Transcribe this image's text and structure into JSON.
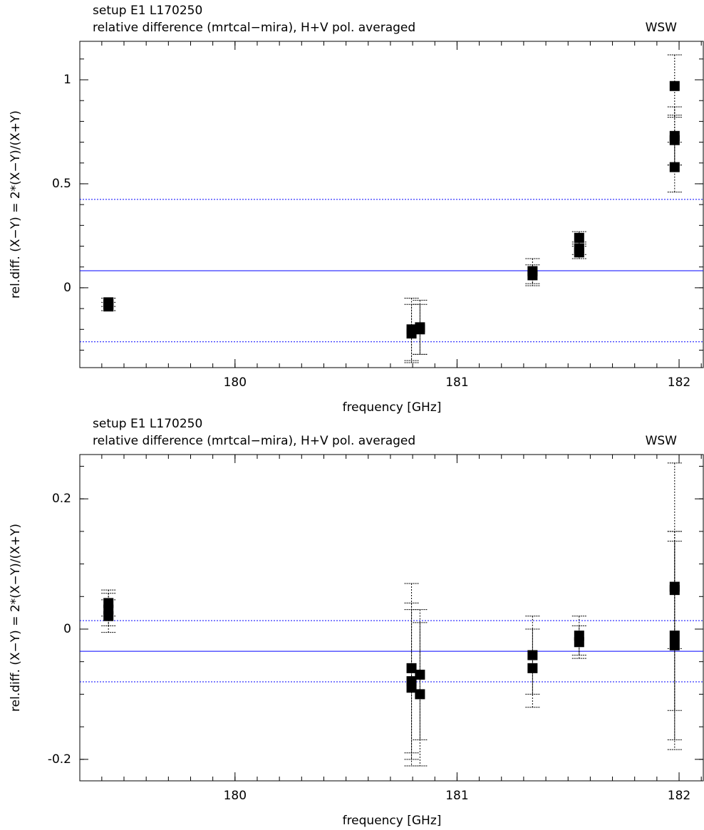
{
  "chart_data": [
    {
      "type": "scatter",
      "title": "setup E1 L170250",
      "subtitle": "relative difference (mrtcal−mira), H+V pol. averaged",
      "annotation": "WSW",
      "xlabel": "frequency [GHz]",
      "ylabel": "rel.diff. (X−Y) = 2*(X−Y)/(X+Y)",
      "xlim": [
        179.301,
        182.109
      ],
      "xticks": [
        180,
        181,
        182
      ],
      "xminor": 0.1,
      "ylim": [
        -0.384,
        1.185
      ],
      "yticks": [
        0,
        0.5,
        1
      ],
      "yminor": 0.1,
      "series": [
        {
          "color": "#000000",
          "x": [
            179.43,
            179.43,
            179.43,
            180.795,
            180.795,
            180.833,
            180.833,
            181.34,
            181.34,
            181.55,
            181.55,
            181.55,
            181.98,
            181.98,
            181.98,
            181.98
          ],
          "values": [
            -0.07,
            -0.09,
            -0.08,
            -0.2,
            -0.22,
            -0.19,
            -0.2,
            0.06,
            0.08,
            0.24,
            0.17,
            0.19,
            0.97,
            0.73,
            0.71,
            0.58
          ],
          "errors": [
            0.02,
            0.02,
            0.03,
            0.15,
            0.14,
            0.13,
            0.12,
            0.05,
            0.06,
            0.03,
            0.03,
            0.03,
            0.15,
            0.14,
            0.12,
            0.12
          ]
        }
      ],
      "hlines": [
        {
          "value": 0.082,
          "color": "#0000ff",
          "dashed": false
        },
        {
          "value": 0.425,
          "color": "#0000ff",
          "dashed": true
        },
        {
          "value": -0.26,
          "color": "#0000ff",
          "dashed": true
        }
      ]
    },
    {
      "type": "scatter",
      "title": "setup E1 L170250",
      "subtitle": "relative difference (mrtcal−mira), H+V pol. averaged",
      "annotation": "WSW",
      "xlabel": "frequency [GHz]",
      "ylabel": "rel.diff. (X−Y) = 2*(X−Y)/(X+Y)",
      "xlim": [
        179.301,
        182.109
      ],
      "xticks": [
        180,
        181,
        182
      ],
      "xminor": 0.1,
      "ylim": [
        -0.233,
        0.268
      ],
      "yticks": [
        -0.2,
        0,
        0.2
      ],
      "yminor": 0.05,
      "series": [
        {
          "color": "#000000",
          "x": [
            179.43,
            179.43,
            179.43,
            180.795,
            180.795,
            180.795,
            180.833,
            180.833,
            181.34,
            181.34,
            181.55,
            181.55,
            181.98,
            181.98,
            181.98,
            181.98
          ],
          "values": [
            0.03,
            0.04,
            0.02,
            -0.06,
            -0.08,
            -0.09,
            -0.07,
            -0.1,
            -0.04,
            -0.06,
            -0.01,
            -0.02,
            0.065,
            0.06,
            -0.01,
            -0.025
          ],
          "errors": [
            0.025,
            0.02,
            0.025,
            0.13,
            0.12,
            0.12,
            0.1,
            0.11,
            0.06,
            0.06,
            0.03,
            0.025,
            0.19,
            0.09,
            0.16,
            0.16
          ]
        }
      ],
      "hlines": [
        {
          "value": -0.034,
          "color": "#0000ff",
          "dashed": false
        },
        {
          "value": 0.013,
          "color": "#0000ff",
          "dashed": true
        },
        {
          "value": -0.081,
          "color": "#0000ff",
          "dashed": true
        }
      ]
    }
  ]
}
